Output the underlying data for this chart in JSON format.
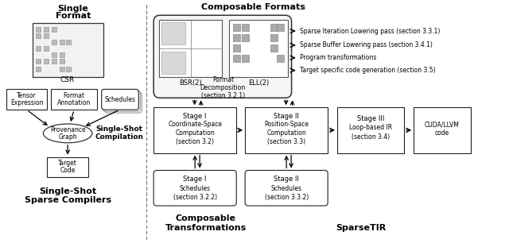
{
  "bg_color": "#ffffff",
  "list_items": [
    "Sparse Iteration Lowering pass (section 3.3.1)",
    "Sparse Buffer Lowering pass (section 3.4.1)",
    "Program transformations",
    "Target specific code generation (section 3.5)"
  ]
}
